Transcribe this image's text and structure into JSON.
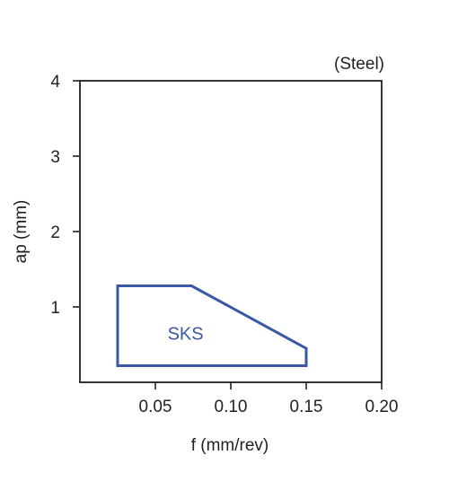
{
  "chart_data": {
    "type": "area",
    "annotation": "(Steel)",
    "xlabel": "f (mm/rev)",
    "ylabel": "ap (mm)",
    "xlim": [
      0,
      0.2
    ],
    "ylim": [
      0,
      4
    ],
    "xticks": [
      {
        "value": 0.05,
        "label": "0.05"
      },
      {
        "value": 0.1,
        "label": "0.10"
      },
      {
        "value": 0.15,
        "label": "0.15"
      },
      {
        "value": 0.2,
        "label": "0.20"
      }
    ],
    "yticks": [
      {
        "value": 1,
        "label": "1"
      },
      {
        "value": 2,
        "label": "2"
      },
      {
        "value": 3,
        "label": "3"
      },
      {
        "value": 4,
        "label": "4"
      }
    ],
    "regions": [
      {
        "label": "SKS",
        "color": "#3a58a3",
        "label_at": {
          "x": 0.07,
          "y": 0.65
        },
        "points": [
          {
            "x": 0.025,
            "y": 0.22
          },
          {
            "x": 0.025,
            "y": 1.28
          },
          {
            "x": 0.074,
            "y": 1.28
          },
          {
            "x": 0.15,
            "y": 0.45
          },
          {
            "x": 0.15,
            "y": 0.22
          }
        ]
      }
    ],
    "grid": false
  }
}
